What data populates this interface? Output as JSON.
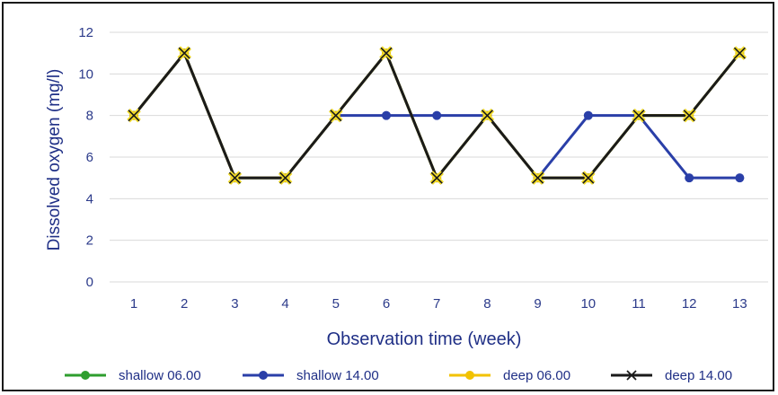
{
  "chart_data": {
    "type": "line",
    "title": "",
    "xlabel": "Observation time (week)",
    "ylabel": "Dissolved oxygen (mg/l)",
    "x": [
      1,
      2,
      3,
      4,
      5,
      6,
      7,
      8,
      9,
      10,
      11,
      12,
      13
    ],
    "ylim": [
      0,
      12
    ],
    "yticks": [
      0,
      2,
      4,
      6,
      8,
      10,
      12
    ],
    "grid": "horizontal",
    "legend_position": "bottom",
    "series": [
      {
        "name": "shallow 06.00",
        "color": "#2e9e2e",
        "marker": "circle",
        "values": [
          8,
          11,
          5,
          5,
          8,
          11,
          5,
          8,
          5,
          5,
          8,
          8,
          11
        ]
      },
      {
        "name": "shallow 14.00",
        "color": "#2a3fa8",
        "marker": "circle",
        "values": [
          8,
          11,
          5,
          5,
          8,
          8,
          8,
          8,
          5,
          8,
          8,
          5,
          5
        ]
      },
      {
        "name": "deep 06.00",
        "color": "#f2c200",
        "marker": "circle",
        "values": [
          8,
          11,
          5,
          5,
          8,
          11,
          5,
          8,
          5,
          5,
          8,
          8,
          11
        ]
      },
      {
        "name": "deep 14.00",
        "color": "#1a1a1a",
        "marker": "x",
        "values": [
          8,
          11,
          5,
          5,
          8,
          11,
          5,
          8,
          5,
          5,
          8,
          8,
          11
        ]
      }
    ]
  }
}
